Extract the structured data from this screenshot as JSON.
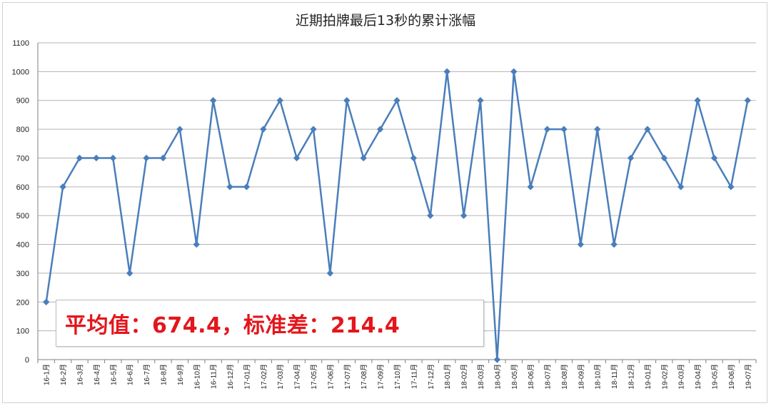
{
  "chart_data": {
    "type": "line",
    "title": "近期拍牌最后13秒的累计涨幅",
    "xlabel": "",
    "ylabel": "",
    "ylim": [
      0,
      1100
    ],
    "yticks": [
      0,
      100,
      200,
      300,
      400,
      500,
      600,
      700,
      800,
      900,
      1000,
      1100
    ],
    "grid": true,
    "legend": "none",
    "categories": [
      "16-1月",
      "16-2月",
      "16-3月",
      "16-4月",
      "16-5月",
      "16-6月",
      "16-7月",
      "16-8月",
      "16-9月",
      "16-10月",
      "16-11月",
      "16-12月",
      "17-01月",
      "17-02月",
      "17-03月",
      "17-04月",
      "17-05月",
      "17-06月",
      "17-07月",
      "17-08月",
      "17-09月",
      "17-10月",
      "17-11月",
      "17-12月",
      "18-01月",
      "18-02月",
      "18-03月",
      "18-04月",
      "18-05月",
      "18-06月",
      "18-07月",
      "18-08月",
      "18-09月",
      "18-10月",
      "18-11月",
      "18-12月",
      "19-01月",
      "19-02月",
      "19-03月",
      "19-04月",
      "19-05月",
      "19-06月",
      "19-07月"
    ],
    "series": [
      {
        "color": "#4a7ebb",
        "values": [
          200,
          600,
          700,
          700,
          700,
          300,
          700,
          700,
          800,
          400,
          900,
          600,
          600,
          800,
          900,
          700,
          800,
          300,
          900,
          700,
          800,
          900,
          700,
          500,
          1000,
          500,
          900,
          0,
          1000,
          600,
          800,
          800,
          400,
          800,
          400,
          700,
          800,
          700,
          600,
          900,
          700,
          600,
          900
        ]
      }
    ],
    "annotation": "平均值：674.4，标准差：214.4"
  },
  "colors": {
    "line": "#4a7ebb",
    "grid": "#b3b3b3",
    "annotation_text": "#e3161c"
  }
}
